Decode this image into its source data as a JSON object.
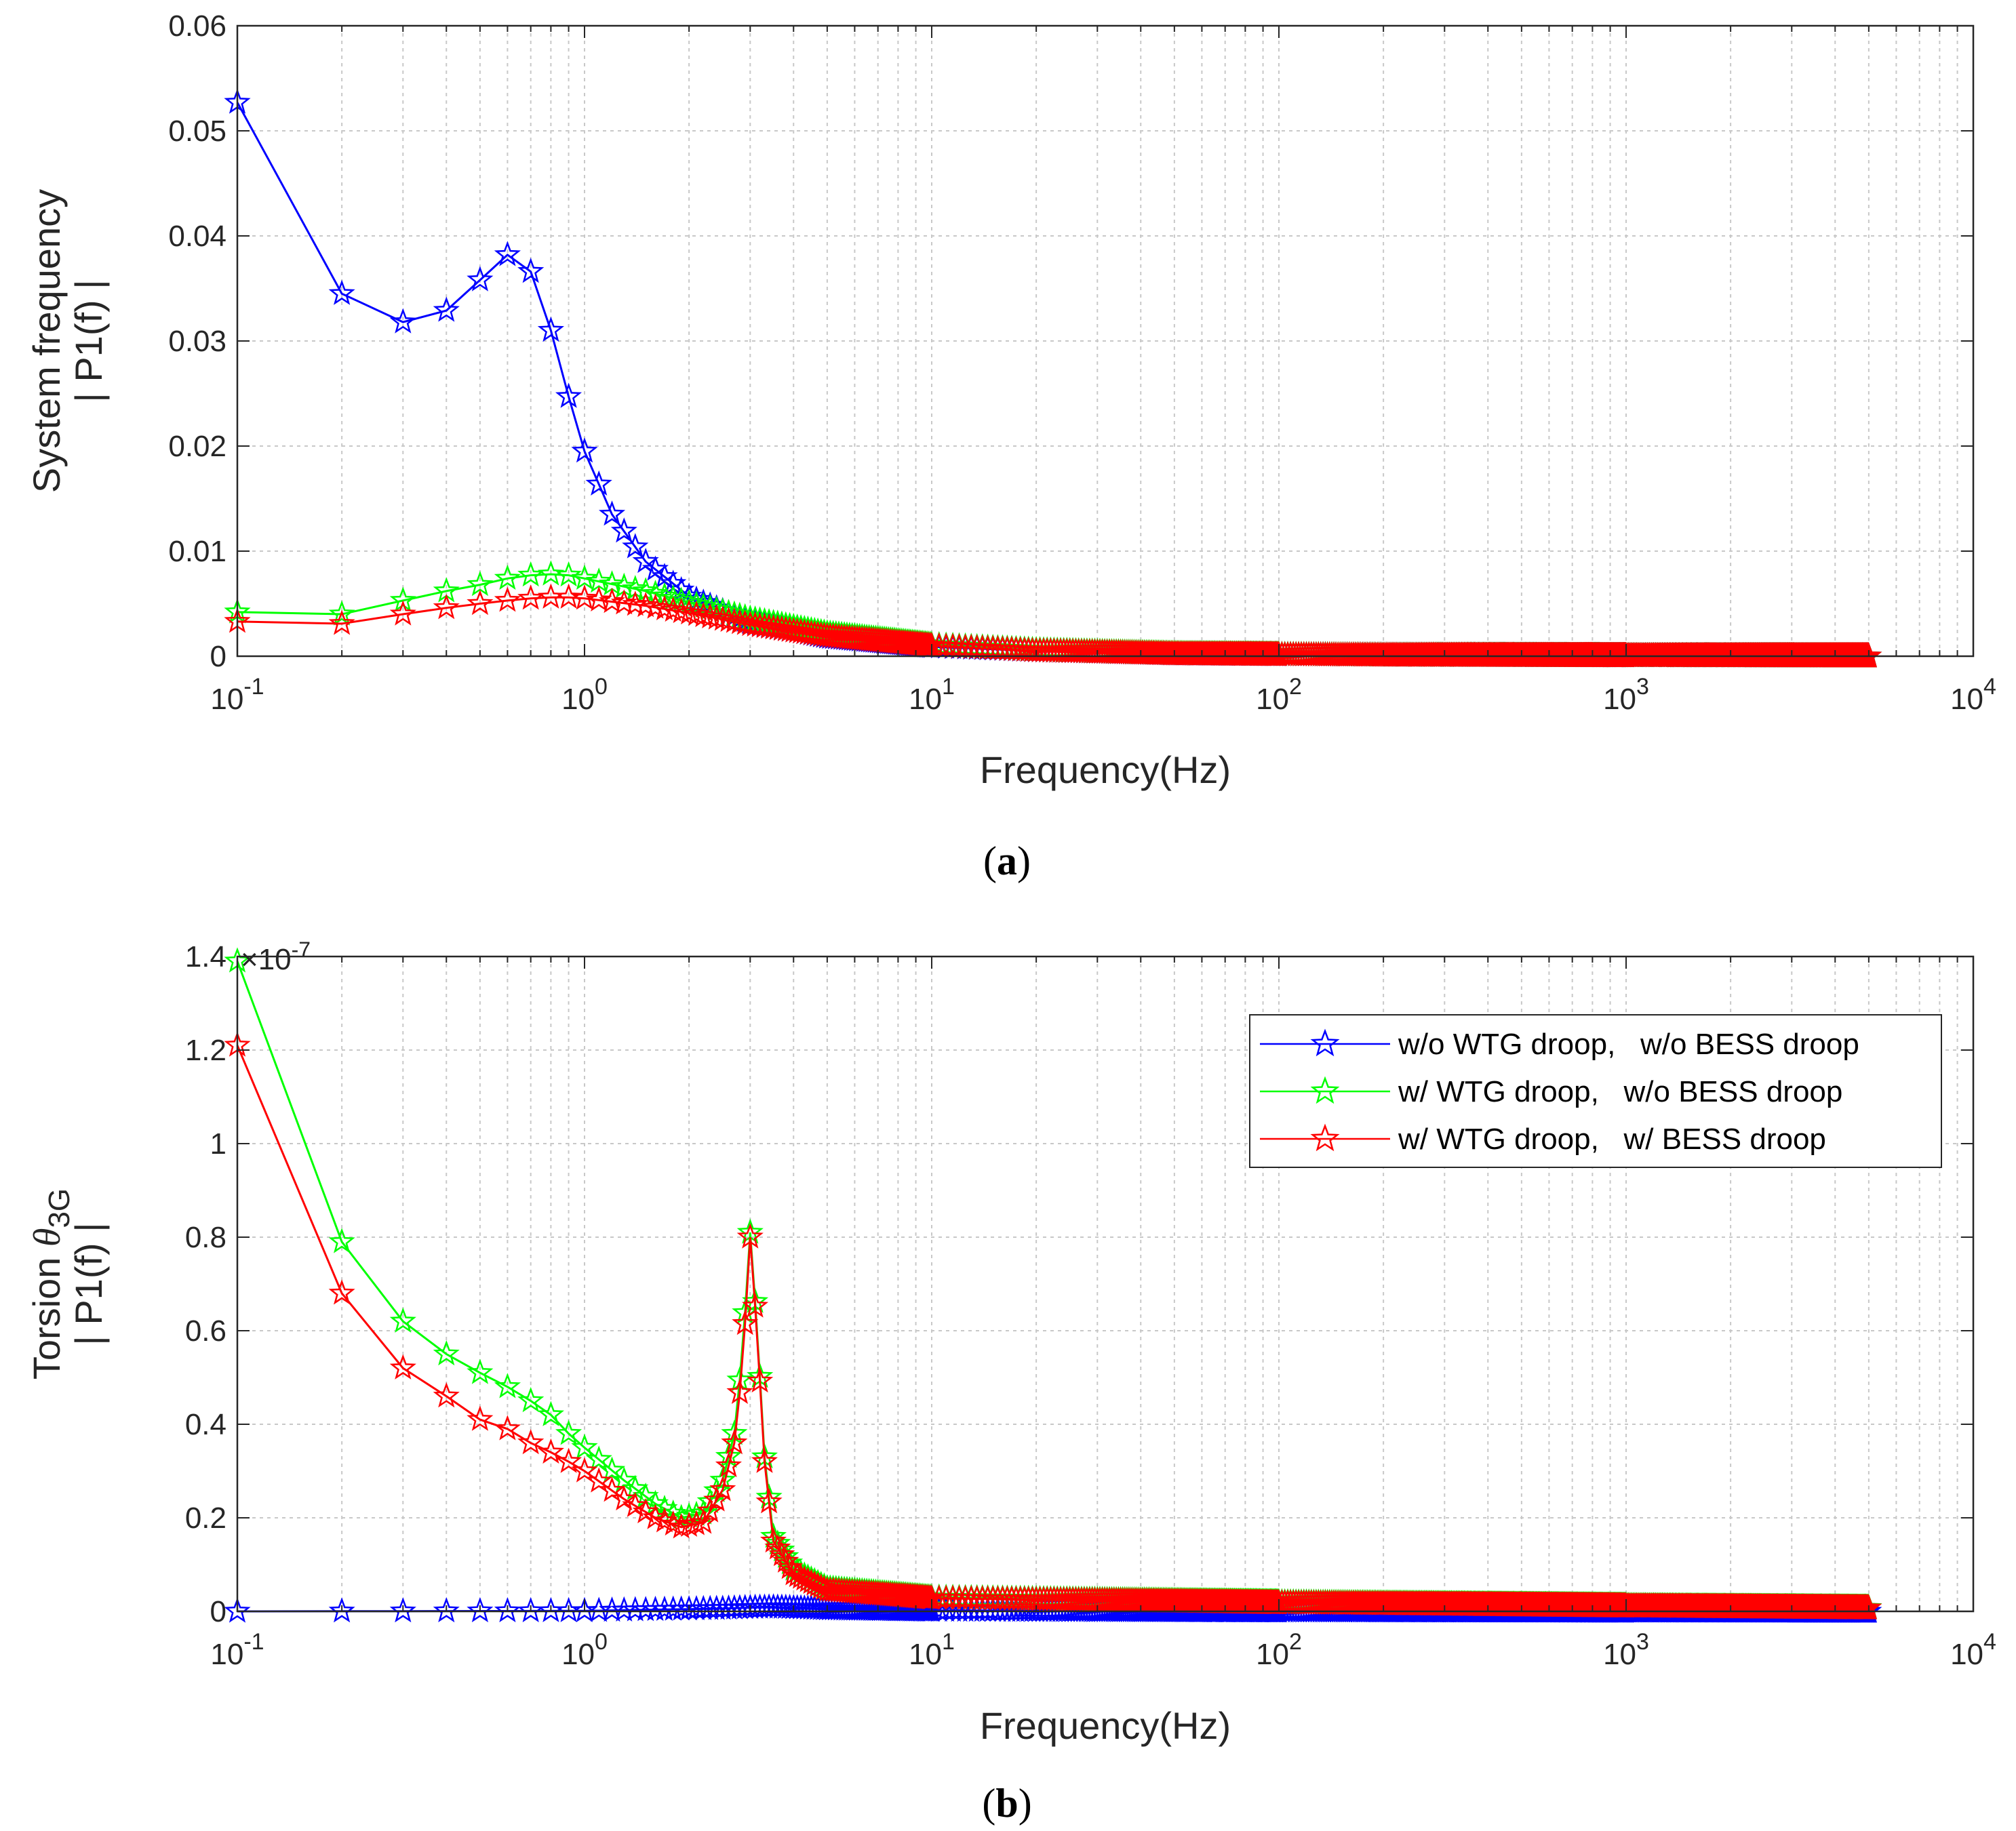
{
  "chart_data": [
    {
      "id": "a",
      "type": "line",
      "xscale": "log",
      "xlim": [
        0.1,
        10000
      ],
      "ylim": [
        0,
        0.06
      ],
      "xlabel": "Frequency(Hz)",
      "ylabel_line1": "System frequency",
      "ylabel_line2": "| P1(f) |",
      "caption": "(a)",
      "yticks": [
        "0",
        "0.01",
        "0.02",
        "0.03",
        "0.04",
        "0.05",
        "0.06"
      ],
      "grid": true,
      "series": [
        {
          "name": "w/o WTG droop,   w/o BESS droop",
          "color": "#0000ff",
          "anchors": [
            [
              0.1,
              0.0527
            ],
            [
              0.2,
              0.0345
            ],
            [
              0.3,
              0.0318
            ],
            [
              0.4,
              0.0329
            ],
            [
              0.5,
              0.0358
            ],
            [
              0.6,
              0.0382
            ],
            [
              0.7,
              0.0366
            ],
            [
              0.8,
              0.031
            ],
            [
              0.9,
              0.0247
            ],
            [
              1.0,
              0.0195
            ],
            [
              1.2,
              0.0135
            ],
            [
              1.5,
              0.009
            ],
            [
              2,
              0.0057
            ],
            [
              3,
              0.0032
            ],
            [
              5,
              0.0018
            ],
            [
              10,
              0.0009
            ],
            [
              20,
              0.0005
            ],
            [
              50,
              0.0002
            ],
            [
              200,
              8e-05
            ],
            [
              1000,
              3e-05
            ],
            [
              5000,
              1e-05
            ]
          ]
        },
        {
          "name": "w/ WTG droop,   w/o BESS droop",
          "color": "#00ff00",
          "anchors": [
            [
              0.1,
              0.0042
            ],
            [
              0.2,
              0.004
            ],
            [
              0.3,
              0.0053
            ],
            [
              0.4,
              0.0062
            ],
            [
              0.5,
              0.0068
            ],
            [
              0.6,
              0.0074
            ],
            [
              0.7,
              0.0077
            ],
            [
              0.8,
              0.0078
            ],
            [
              0.9,
              0.0077
            ],
            [
              1.0,
              0.0074
            ],
            [
              1.5,
              0.0062
            ],
            [
              2,
              0.0051
            ],
            [
              3,
              0.0036
            ],
            [
              5,
              0.0022
            ],
            [
              10,
              0.0011
            ],
            [
              20,
              0.0006
            ],
            [
              50,
              0.00025
            ],
            [
              200,
              8e-05
            ],
            [
              1000,
              3e-05
            ],
            [
              5000,
              1e-05
            ]
          ]
        },
        {
          "name": "w/ WTG droop,   w/ BESS droop",
          "color": "#ff0000",
          "anchors": [
            [
              0.1,
              0.0033
            ],
            [
              0.2,
              0.0031
            ],
            [
              0.3,
              0.004
            ],
            [
              0.4,
              0.0046
            ],
            [
              0.5,
              0.005
            ],
            [
              0.6,
              0.0053
            ],
            [
              0.7,
              0.0055
            ],
            [
              0.8,
              0.0056
            ],
            [
              0.9,
              0.0056
            ],
            [
              1.0,
              0.0055
            ],
            [
              1.5,
              0.0048
            ],
            [
              2,
              0.0041
            ],
            [
              3,
              0.003
            ],
            [
              5,
              0.0019
            ],
            [
              10,
              0.001
            ],
            [
              20,
              0.0005
            ],
            [
              50,
              0.0002
            ],
            [
              200,
              7e-05
            ],
            [
              1000,
              3e-05
            ],
            [
              5000,
              1e-05
            ]
          ]
        }
      ]
    },
    {
      "id": "b",
      "type": "line",
      "xscale": "log",
      "xlim": [
        0.1,
        10000
      ],
      "ylim": [
        0,
        1.4
      ],
      "yexponent": "×10",
      "yexponent_power": "-7",
      "xlabel": "Frequency(Hz)",
      "ylabel_prefix": "Torsion ",
      "ylabel_symbol": "θ",
      "ylabel_subscript": "3G",
      "ylabel_line2": "| P1(f) |",
      "caption": "(b)",
      "yticks": [
        "0",
        "0.2",
        "0.4",
        "0.6",
        "0.8",
        "1",
        "1.2",
        "1.4"
      ],
      "grid": true,
      "legend_position": "top-right",
      "series": [
        {
          "name": "w/o WTG droop,   w/o BESS droop",
          "color": "#0000ff",
          "anchors": [
            [
              0.1,
              0.0
            ],
            [
              1,
              0.001
            ],
            [
              2.5,
              0.006
            ],
            [
              3,
              0.008
            ],
            [
              3.5,
              0.009
            ],
            [
              5,
              0.005
            ],
            [
              10,
              0.002
            ],
            [
              100,
              0.0005
            ],
            [
              5000,
              0.0001
            ]
          ]
        },
        {
          "name": "w/ WTG droop,   w/o BESS droop",
          "color": "#00ff00",
          "anchors": [
            [
              0.1,
              1.39
            ],
            [
              0.2,
              0.79
            ],
            [
              0.3,
              0.62
            ],
            [
              0.4,
              0.55
            ],
            [
              0.5,
              0.51
            ],
            [
              0.6,
              0.48
            ],
            [
              0.7,
              0.45
            ],
            [
              0.8,
              0.42
            ],
            [
              0.9,
              0.38
            ],
            [
              1.0,
              0.35
            ],
            [
              1.3,
              0.28
            ],
            [
              1.6,
              0.23
            ],
            [
              1.9,
              0.2
            ],
            [
              2.2,
              0.21
            ],
            [
              2.5,
              0.28
            ],
            [
              2.7,
              0.38
            ],
            [
              2.85,
              0.55
            ],
            [
              3.0,
              0.81
            ],
            [
              3.15,
              0.59
            ],
            [
              3.3,
              0.33
            ],
            [
              3.5,
              0.16
            ],
            [
              4,
              0.09
            ],
            [
              5,
              0.05
            ],
            [
              10,
              0.03
            ],
            [
              100,
              0.02
            ],
            [
              1000,
              0.012
            ],
            [
              5000,
              0.008
            ]
          ]
        },
        {
          "name": "w/ WTG droop,   w/ BESS droop",
          "color": "#ff0000",
          "anchors": [
            [
              0.1,
              1.21
            ],
            [
              0.2,
              0.68
            ],
            [
              0.3,
              0.52
            ],
            [
              0.4,
              0.46
            ],
            [
              0.5,
              0.41
            ],
            [
              0.6,
              0.39
            ],
            [
              0.7,
              0.36
            ],
            [
              0.8,
              0.34
            ],
            [
              0.9,
              0.32
            ],
            [
              1.0,
              0.3
            ],
            [
              1.3,
              0.24
            ],
            [
              1.6,
              0.2
            ],
            [
              1.9,
              0.18
            ],
            [
              2.2,
              0.19
            ],
            [
              2.5,
              0.26
            ],
            [
              2.7,
              0.36
            ],
            [
              2.85,
              0.52
            ],
            [
              3.0,
              0.8
            ],
            [
              3.15,
              0.58
            ],
            [
              3.3,
              0.32
            ],
            [
              3.5,
              0.15
            ],
            [
              4,
              0.08
            ],
            [
              5,
              0.045
            ],
            [
              10,
              0.028
            ],
            [
              100,
              0.018
            ],
            [
              1000,
              0.011
            ],
            [
              5000,
              0.007
            ]
          ]
        }
      ]
    }
  ]
}
